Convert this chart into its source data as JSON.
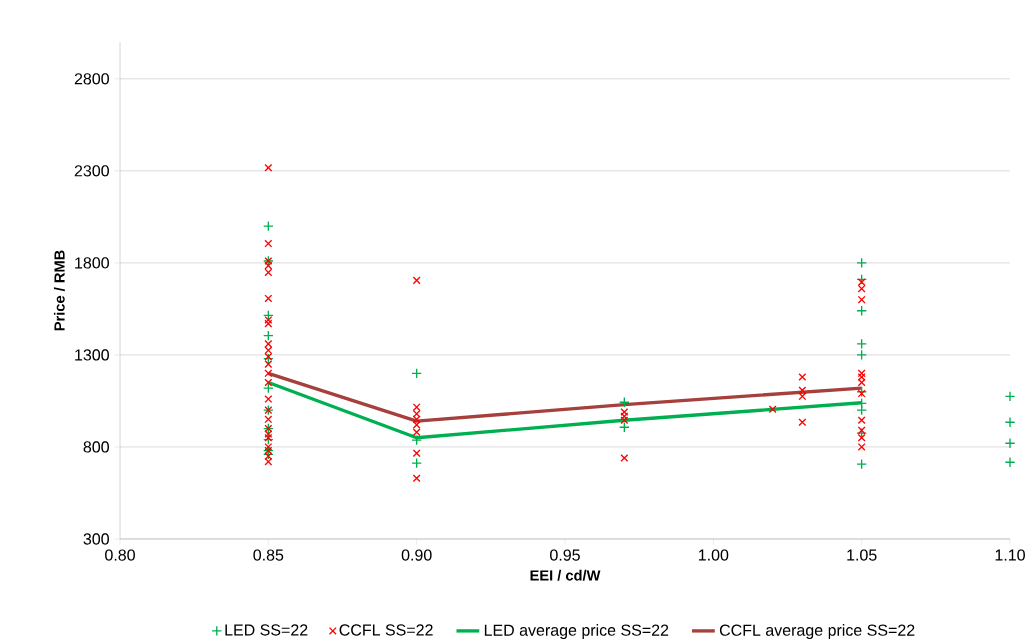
{
  "chart_data": {
    "type": "scatter",
    "xlabel": "EEI / cd/W",
    "ylabel": "Price / RMB",
    "xlim": [
      0.8,
      1.1
    ],
    "ylim": [
      300,
      3000
    ],
    "xticks": [
      {
        "value": 0.8,
        "label": "0.80"
      },
      {
        "value": 0.85,
        "label": "0.85"
      },
      {
        "value": 0.9,
        "label": "0.90"
      },
      {
        "value": 0.95,
        "label": "0.95"
      },
      {
        "value": 1.0,
        "label": "1.00"
      },
      {
        "value": 1.05,
        "label": "1.05"
      },
      {
        "value": 1.1,
        "label": "1.10"
      }
    ],
    "yticks": [
      300,
      800,
      1300,
      1800,
      2300,
      2800
    ],
    "grid": "y",
    "legend": "bottom",
    "series": [
      {
        "name": "LED SS=22",
        "marker": "plus",
        "color": "#00b050",
        "x": [
          0.85,
          0.85,
          0.85,
          0.85,
          0.85,
          0.85,
          0.85,
          0.85,
          0.85,
          0.85,
          0.85,
          0.9,
          0.9,
          0.9,
          0.97,
          0.97,
          1.05,
          1.05,
          1.05,
          1.05,
          1.05,
          1.05,
          1.05,
          1.05,
          1.05,
          1.05,
          1.1,
          1.1,
          1.1,
          1.1
        ],
        "values": [
          2000,
          1810,
          1515,
          1405,
          1280,
          1120,
          1000,
          900,
          840,
          780,
          760,
          1200,
          837,
          712,
          1043,
          907,
          1800,
          1710,
          1540,
          1360,
          1300,
          1100,
          1037,
          1000,
          875,
          707,
          1075,
          934,
          820,
          717
        ]
      },
      {
        "name": "CCFL SS=22",
        "marker": "cross",
        "color": "#ff0000",
        "x": [
          0.85,
          0.85,
          0.85,
          0.85,
          0.85,
          0.85,
          0.85,
          0.85,
          0.85,
          0.85,
          0.85,
          0.85,
          0.85,
          0.85,
          0.85,
          0.85,
          0.85,
          0.85,
          0.85,
          0.85,
          0.85,
          0.85,
          0.85,
          0.85,
          0.9,
          0.9,
          0.9,
          0.9,
          0.9,
          0.9,
          0.9,
          0.9,
          0.97,
          0.97,
          0.97,
          0.97,
          1.02,
          1.03,
          1.03,
          1.03,
          1.03,
          1.05,
          1.05,
          1.05,
          1.05,
          1.05,
          1.05,
          1.05,
          1.05,
          1.05,
          1.05,
          1.05
        ],
        "values": [
          2317,
          1905,
          1810,
          1785,
          1748,
          1607,
          1490,
          1470,
          1360,
          1325,
          1290,
          1250,
          1200,
          1150,
          1060,
          1000,
          950,
          900,
          870,
          850,
          800,
          780,
          750,
          720,
          1705,
          1016,
          980,
          950,
          920,
          880,
          766,
          630,
          990,
          966,
          945,
          740,
          1005,
          1180,
          1108,
          1075,
          934,
          1695,
          1660,
          1600,
          1200,
          1180,
          1150,
          1090,
          945,
          890,
          850,
          800
        ]
      },
      {
        "name": "LED average price SS=22",
        "type": "line",
        "color": "#00b050",
        "x": [
          0.85,
          0.9,
          0.97,
          1.05
        ],
        "values": [
          1150,
          850,
          945,
          1040
        ]
      },
      {
        "name": "CCFL average price SS=22",
        "type": "line",
        "color": "#a5403c",
        "x": [
          0.85,
          0.9,
          0.97,
          1.05
        ],
        "values": [
          1200,
          940,
          1030,
          1120
        ]
      }
    ]
  }
}
